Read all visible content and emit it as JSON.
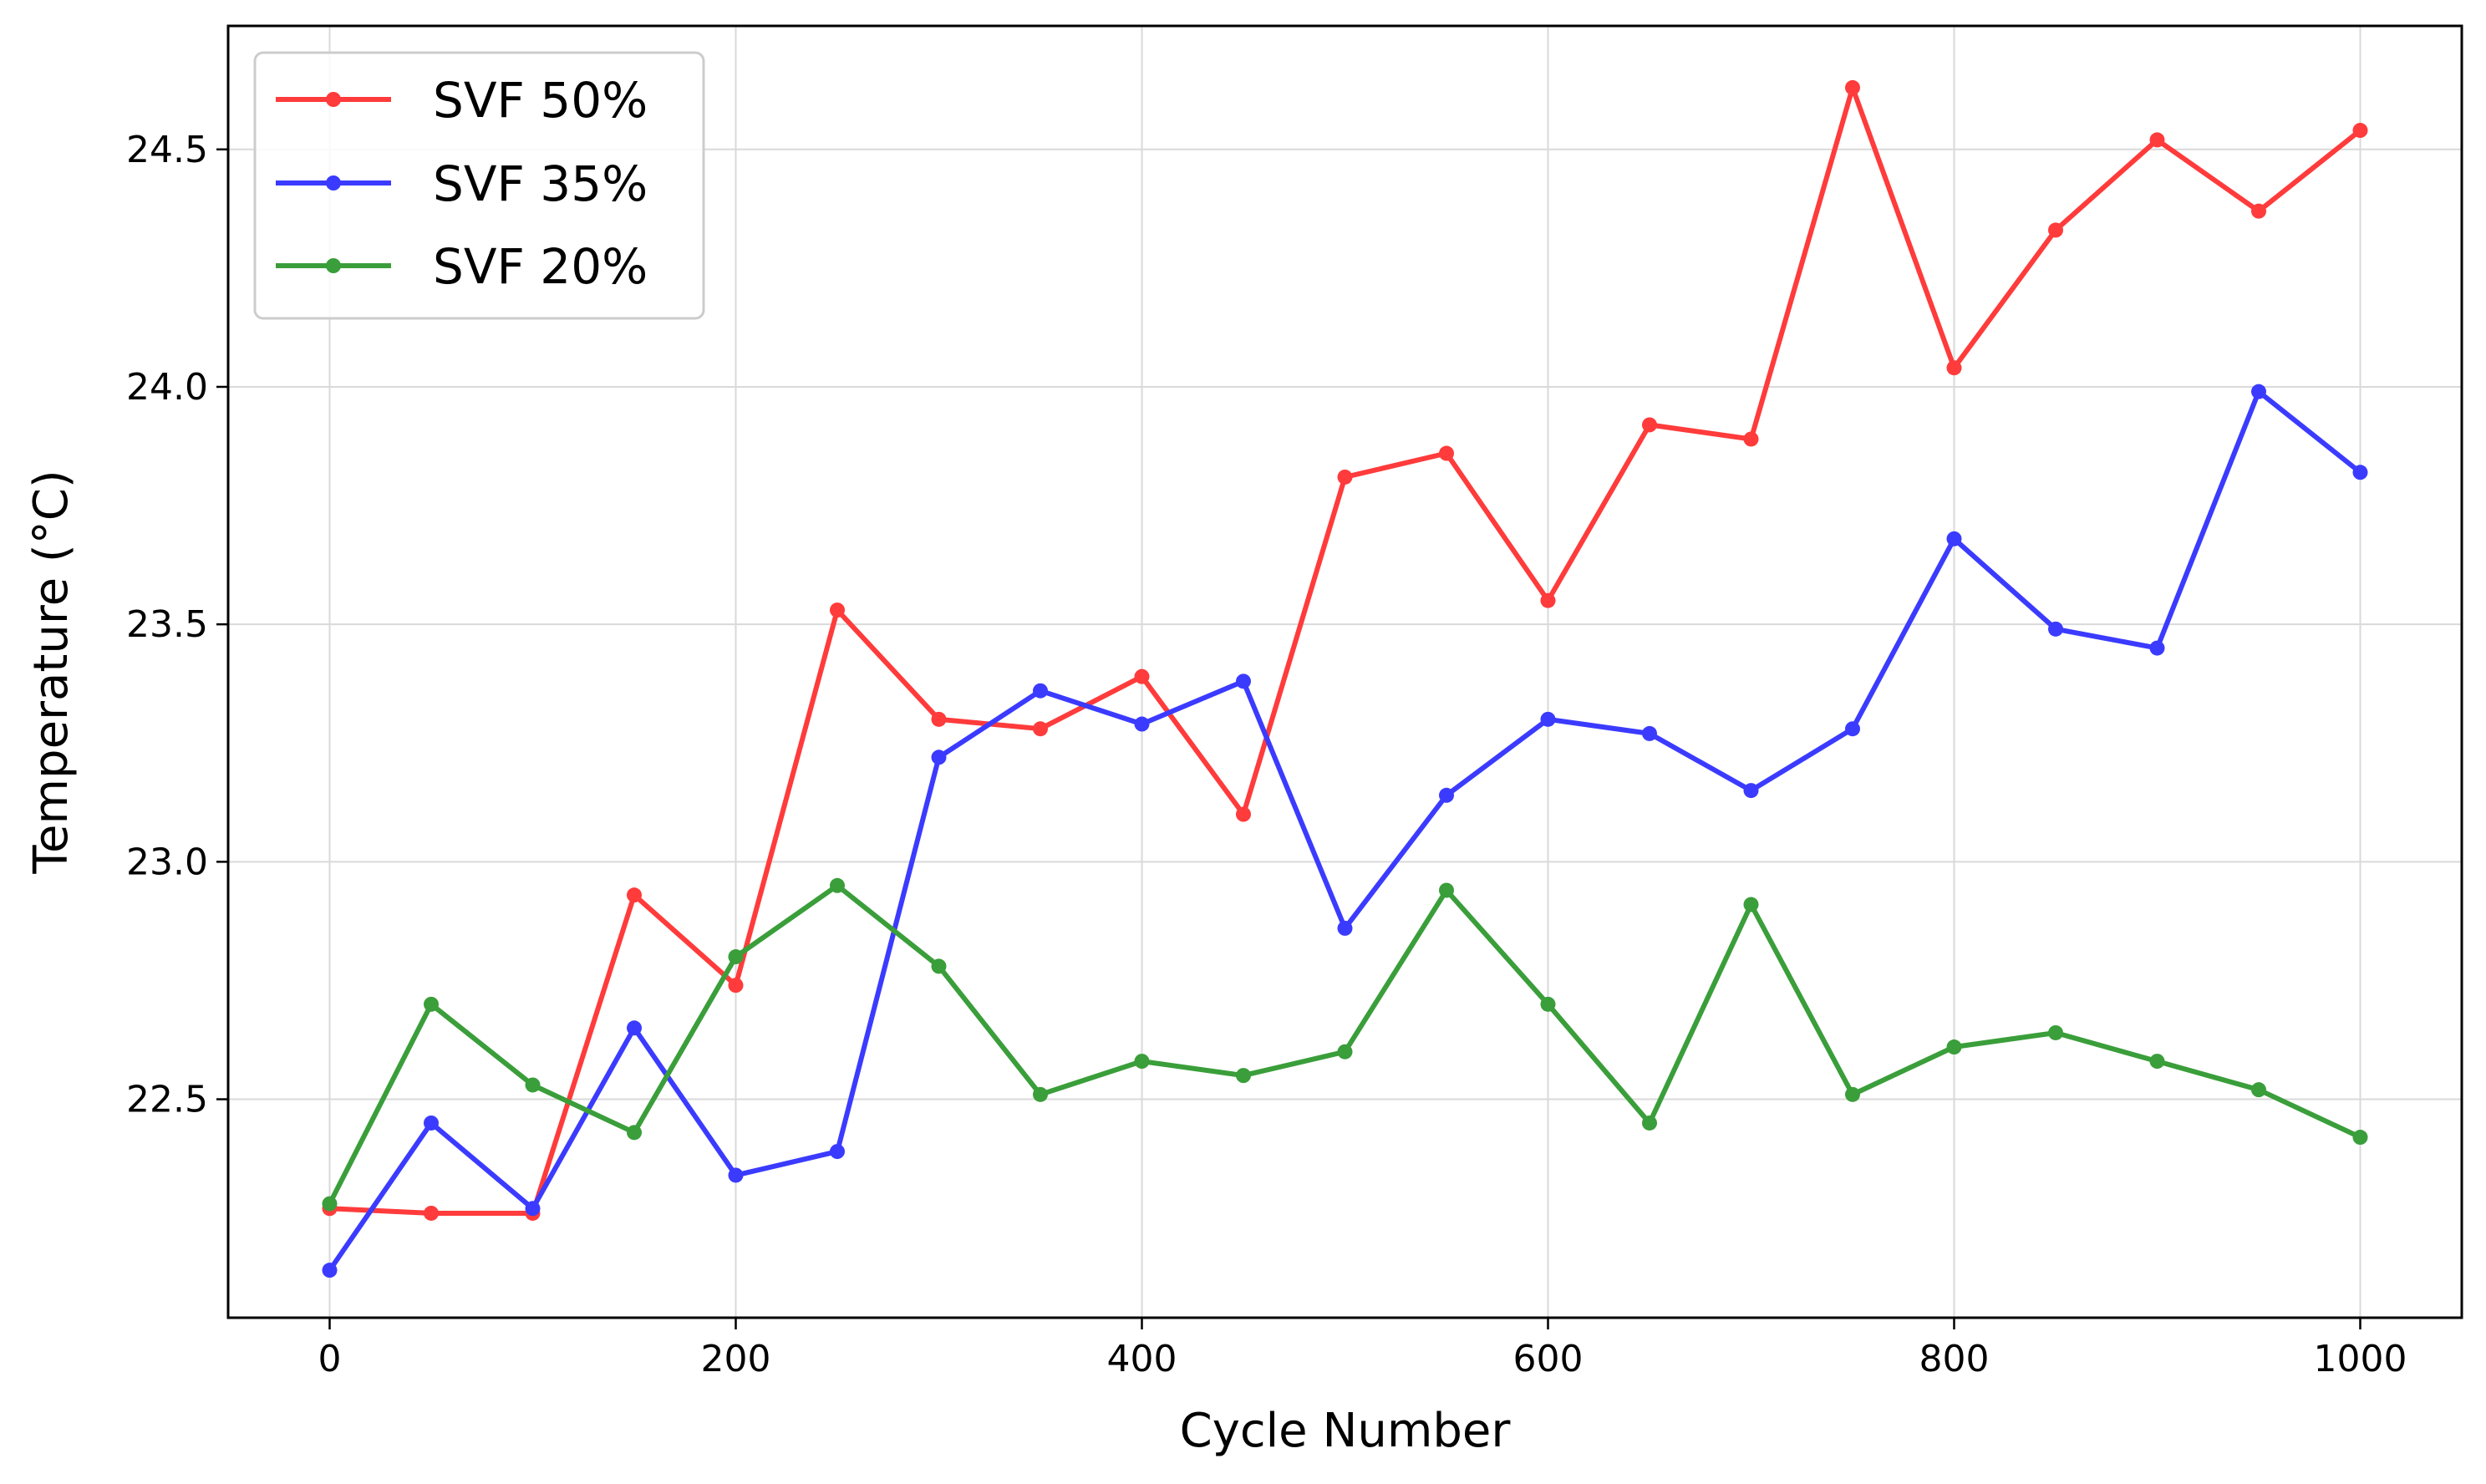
{
  "chart_data": {
    "type": "line",
    "title": "",
    "xlabel": "Cycle Number",
    "ylabel": "Temperature (°C)",
    "xlim": [
      -50,
      1050
    ],
    "ylim": [
      22.04,
      24.76
    ],
    "xticks": [
      0,
      200,
      400,
      600,
      800,
      1000
    ],
    "yticks": [
      22.5,
      23.0,
      23.5,
      24.0,
      24.5
    ],
    "xtick_labels": [
      "0",
      "200",
      "400",
      "600",
      "800",
      "1000"
    ],
    "ytick_labels": [
      "22.5",
      "23.0",
      "23.5",
      "24.0",
      "24.5"
    ],
    "grid": true,
    "legend_position": "upper-left",
    "x": [
      0,
      50,
      100,
      150,
      200,
      250,
      300,
      350,
      400,
      450,
      500,
      550,
      600,
      650,
      700,
      750,
      800,
      850,
      900,
      950,
      1000
    ],
    "series": [
      {
        "name": "SVF 50%",
        "color": "#ff3b3b",
        "values": [
          22.27,
          22.26,
          22.26,
          22.93,
          22.74,
          23.53,
          23.3,
          23.28,
          23.39,
          23.1,
          23.81,
          23.86,
          23.55,
          23.92,
          23.89,
          24.63,
          24.04,
          24.33,
          24.52,
          24.37,
          24.54
        ]
      },
      {
        "name": "SVF 35%",
        "color": "#3b3bff",
        "values": [
          22.14,
          22.45,
          22.27,
          22.65,
          22.34,
          22.39,
          23.22,
          23.36,
          23.29,
          23.38,
          22.86,
          23.14,
          23.3,
          23.27,
          23.15,
          23.28,
          23.68,
          23.49,
          23.45,
          23.99,
          23.82
        ]
      },
      {
        "name": "SVF 20%",
        "color": "#3a9e3a",
        "values": [
          22.28,
          22.7,
          22.53,
          22.43,
          22.8,
          22.95,
          22.78,
          22.51,
          22.58,
          22.55,
          22.6,
          22.94,
          22.7,
          22.45,
          22.91,
          22.51,
          22.61,
          22.64,
          22.58,
          22.52,
          22.42
        ]
      }
    ]
  }
}
